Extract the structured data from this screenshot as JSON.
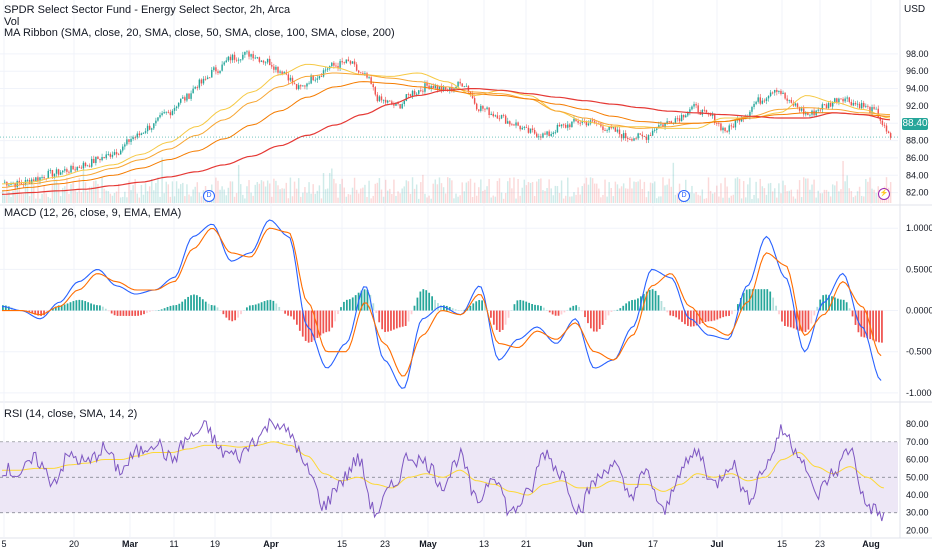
{
  "legend": {
    "symbol_line": "SPDR Select Sector Fund - Energy Select Sector, 2h, Arca",
    "volume_line": "Vol",
    "ma_line": "MA Ribbon (SMA, close, 20, SMA, close, 50, SMA, close, 100, SMA, close, 200)",
    "macd_line": "MACD (12, 26, close, 9, EMA, EMA)",
    "rsi_line": "RSI (14, close, SMA, 14, 2)"
  },
  "currency": "USD",
  "last_price_label": "88.40",
  "event_marks": [
    {
      "label": "D",
      "kind": "dividend",
      "x_label": "Mar"
    },
    {
      "label": "D",
      "kind": "dividend",
      "x_label": "Jun"
    },
    {
      "label": "⚡",
      "kind": "earnings",
      "x_label": "Aug"
    }
  ],
  "colors": {
    "up": "#26a69a",
    "down": "#ef5350",
    "sma20": "#f6c945",
    "sma50": "#f7a633",
    "sma100": "#f57c00",
    "sma200": "#e53935",
    "macd": "#2962ff",
    "signal": "#ff6d00",
    "hist_pos_strong": "#26a69a",
    "hist_pos_weak": "#b2dfdb",
    "hist_neg_strong": "#ef5350",
    "hist_neg_weak": "#ffcdd2",
    "rsi": "#7e57c2",
    "rsi_ma": "#fdd835",
    "rsi_band": "#ede7f6",
    "grid": "#f0f3fa",
    "axis_text": "#131722"
  },
  "chart_data": [
    {
      "type": "candlestick",
      "name": "price",
      "y_ticks": [
        82,
        84,
        86,
        88,
        90,
        92,
        94,
        96,
        98
      ],
      "y_tick_labels": [
        "82.00",
        "84.00",
        "86.00",
        "88.00",
        "90.00",
        "92.00",
        "94.00",
        "96.00",
        "98.00"
      ],
      "ylim": [
        80.8,
        99.6
      ],
      "x_labels": [
        "5",
        "20",
        "Mar",
        "11",
        "19",
        "Apr",
        "15",
        "23",
        "May",
        "13",
        "21",
        "Jun",
        "17",
        "Jul",
        "15",
        "23",
        "Aug"
      ],
      "close_anchors": [
        83.2,
        83.0,
        83.6,
        84.2,
        84.6,
        85.2,
        86.0,
        86.8,
        88.4,
        89.6,
        91.2,
        92.8,
        94.6,
        96.2,
        97.6,
        98.0,
        97.2,
        96.0,
        94.0,
        95.4,
        96.6,
        97.0,
        95.4,
        92.6,
        92.0,
        93.6,
        94.4,
        93.8,
        94.6,
        91.8,
        91.0,
        90.0,
        89.0,
        88.6,
        89.6,
        90.2,
        90.0,
        89.2,
        88.4,
        88.4,
        89.8,
        90.6,
        91.8,
        90.8,
        89.2,
        90.8,
        92.6,
        94.0,
        92.2,
        91.0,
        92.0,
        93.0,
        92.2,
        91.4,
        88.4
      ],
      "volume_note": "volume bars along pane bottom",
      "ma_series": [
        {
          "name": "SMA 20",
          "anchors": [
            83.0,
            83.2,
            83.8,
            84.6,
            85.2,
            86.4,
            87.8,
            89.6,
            91.6,
            93.6,
            95.6,
            96.8,
            96.4,
            95.6,
            95.4,
            95.8,
            94.8,
            93.2,
            93.8,
            93.2,
            91.4,
            90.2,
            89.6,
            89.6,
            89.4,
            89.4,
            90.6,
            90.6,
            91.2,
            93.2,
            92.4,
            91.6,
            90.6
          ]
        },
        {
          "name": "SMA 50",
          "anchors": [
            82.6,
            83.0,
            83.4,
            84.0,
            84.8,
            85.8,
            87.0,
            88.6,
            90.4,
            92.4,
            94.2,
            95.4,
            95.8,
            95.6,
            95.2,
            94.8,
            94.2,
            93.6,
            93.4,
            92.8,
            91.4,
            90.6,
            89.8,
            89.4,
            89.6,
            90.0,
            90.2,
            90.8,
            91.6,
            91.8,
            91.6,
            91.2,
            91.0
          ]
        },
        {
          "name": "SMA 100",
          "anchors": [
            82.2,
            82.6,
            83.0,
            83.4,
            84.0,
            84.8,
            85.8,
            86.8,
            88.2,
            89.8,
            91.4,
            93.0,
            94.2,
            94.8,
            94.6,
            94.2,
            93.8,
            93.4,
            93.2,
            92.8,
            92.2,
            91.6,
            90.8,
            90.2,
            90.0,
            90.0,
            90.2,
            90.6,
            91.0,
            91.2,
            91.2,
            91.0,
            90.8
          ]
        },
        {
          "name": "SMA 200",
          "anchors": [
            81.8,
            82.0,
            82.2,
            82.4,
            82.8,
            83.2,
            83.8,
            84.4,
            85.2,
            86.2,
            87.4,
            88.6,
            89.8,
            91.0,
            92.2,
            93.2,
            93.8,
            94.0,
            93.8,
            93.4,
            93.0,
            92.6,
            92.2,
            91.8,
            91.4,
            91.2,
            91.0,
            90.8,
            90.6,
            90.6,
            91.2,
            91.0,
            90.4
          ]
        }
      ]
    },
    {
      "type": "line",
      "name": "MACD",
      "y_ticks": [
        -1.0,
        -0.5,
        0,
        0.5,
        1.0
      ],
      "y_tick_labels": [
        "-1.0000",
        "-0.5000",
        "0.0000",
        "0.5000",
        "1.0000"
      ],
      "ylim": [
        -1.05,
        1.1
      ],
      "series": [
        {
          "name": "MACD",
          "anchors": [
            0.05,
            0.0,
            -0.1,
            0.1,
            0.35,
            0.5,
            0.3,
            0.2,
            0.25,
            0.4,
            0.9,
            1.05,
            0.6,
            0.7,
            1.1,
            0.9,
            -0.2,
            -0.7,
            -0.4,
            0.3,
            -0.6,
            -0.95,
            -0.1,
            0.05,
            -0.05,
            0.3,
            -0.6,
            -0.35,
            -0.2,
            -0.4,
            -0.1,
            -0.7,
            -0.6,
            -0.2,
            0.5,
            0.4,
            -0.1,
            -0.3,
            -0.35,
            0.3,
            0.9,
            0.4,
            -0.5,
            0.1,
            0.45,
            -0.2,
            -0.85
          ]
        },
        {
          "name": "Signal",
          "anchors": [
            0.0,
            0.0,
            -0.05,
            0.05,
            0.25,
            0.45,
            0.35,
            0.25,
            0.25,
            0.35,
            0.75,
            1.0,
            0.7,
            0.65,
            1.0,
            0.95,
            0.1,
            -0.5,
            -0.5,
            0.1,
            -0.4,
            -0.8,
            -0.3,
            0.0,
            -0.05,
            0.2,
            -0.4,
            -0.45,
            -0.25,
            -0.35,
            -0.15,
            -0.5,
            -0.6,
            -0.3,
            0.3,
            0.45,
            0.05,
            -0.2,
            -0.3,
            0.1,
            0.7,
            0.55,
            -0.3,
            -0.05,
            0.35,
            0.05,
            -0.55
          ]
        }
      ]
    },
    {
      "type": "line",
      "name": "RSI",
      "y_ticks": [
        20,
        30,
        40,
        50,
        60,
        70,
        80
      ],
      "y_tick_labels": [
        "20.00",
        "30.00",
        "40.00",
        "50.00",
        "60.00",
        "70.00",
        "80.00"
      ],
      "ylim": [
        18,
        84
      ],
      "bands": [
        30,
        70
      ],
      "series": [
        {
          "name": "RSI",
          "anchors": [
            55,
            52,
            60,
            48,
            62,
            58,
            66,
            54,
            64,
            70,
            60,
            72,
            78,
            64,
            62,
            72,
            82,
            74,
            54,
            34,
            48,
            60,
            30,
            44,
            62,
            58,
            46,
            62,
            36,
            52,
            30,
            40,
            64,
            52,
            32,
            48,
            58,
            40,
            52,
            30,
            54,
            64,
            46,
            58,
            38,
            56,
            76,
            64,
            40,
            52,
            66,
            34,
            28
          ]
        },
        {
          "name": "RSI MA",
          "anchors": [
            54,
            54,
            55,
            55,
            57,
            58,
            60,
            60,
            62,
            64,
            64,
            66,
            68,
            68,
            67,
            68,
            70,
            68,
            62,
            52,
            48,
            50,
            46,
            44,
            50,
            52,
            50,
            54,
            48,
            46,
            42,
            40,
            46,
            48,
            44,
            44,
            48,
            46,
            46,
            42,
            46,
            52,
            50,
            52,
            48,
            50,
            60,
            64,
            56,
            52,
            56,
            50,
            44
          ]
        }
      ]
    }
  ]
}
